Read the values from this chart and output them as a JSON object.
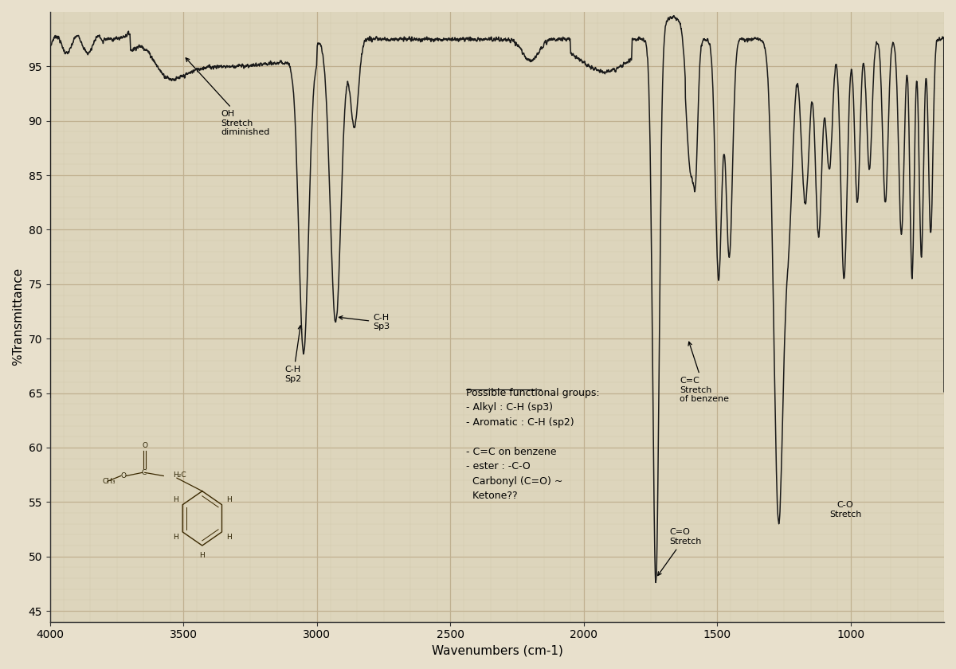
{
  "background_color": "#e8e0cc",
  "plot_bg_color": "#ddd5bc",
  "grid_color_major": "#c0b090",
  "grid_color_minor": "#ccc0a0",
  "line_color": "#1a1a1a",
  "xlim": [
    4000,
    650
  ],
  "ylim": [
    44,
    100
  ],
  "yticks": [
    45,
    50,
    55,
    60,
    65,
    70,
    75,
    80,
    85,
    90,
    95
  ],
  "xticks": [
    4000,
    3500,
    3000,
    2500,
    2000,
    1500,
    1000
  ],
  "xlabel": "Wavenumbers (cm-1)",
  "ylabel": "%Transmittance",
  "axis_fontsize": 11,
  "tick_fontsize": 10,
  "ann_fontsize": 8
}
